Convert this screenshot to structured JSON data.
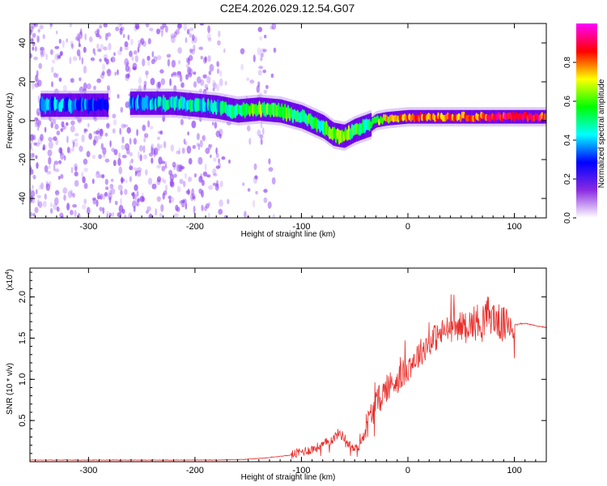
{
  "title": "C2E4.2026.029.12.54.G07",
  "colors": {
    "line": "#e8302c",
    "axis": "#000000",
    "track_dark": "#6a00e8",
    "noise": "#8c3cf2"
  },
  "chart_data": [
    {
      "type": "heatmap",
      "name": "spectrogram",
      "xlabel": "Height of straight line (km)",
      "ylabel": "Frequency (Hz)",
      "xlim": [
        -355,
        130
      ],
      "ylim": [
        -50,
        50
      ],
      "xticks": [
        -300,
        -200,
        -100,
        0,
        100
      ],
      "xtick_labels": [
        "-300",
        "-200",
        "-100",
        "0",
        "100"
      ],
      "yticks": [
        -40,
        -20,
        0,
        20,
        40
      ],
      "ytick_labels": [
        "-40",
        "-20",
        "0",
        "20",
        "40"
      ],
      "colorbar": {
        "label": "Normalized spectral amplitude",
        "range": [
          0,
          1
        ],
        "ticks": [
          0.0,
          0.2,
          0.4,
          0.6,
          0.8
        ],
        "tick_labels": [
          "0.0",
          "0.2",
          "0.4",
          "0.6",
          "0.8"
        ],
        "stops": [
          "#ffffff",
          "#8a2be2",
          "#0000ff",
          "#00ffff",
          "#00ff00",
          "#ffff00",
          "#ff0000",
          "#ff00ff"
        ]
      },
      "noise_region_km": [
        -355,
        -125
      ],
      "noise_gap_km": [
        -175,
        -150
      ],
      "track": {
        "x": [
          -345,
          -320,
          -300,
          -280,
          -260,
          -240,
          -220,
          -200,
          -180,
          -170,
          -160,
          -140,
          -120,
          -100,
          -80,
          -70,
          -60,
          -50,
          -40,
          -35,
          -30,
          -20,
          0,
          20,
          50,
          80,
          100,
          130
        ],
        "freq": [
          8,
          8,
          8,
          8,
          9,
          9,
          9,
          8,
          7,
          6,
          5,
          6,
          5,
          2,
          -3,
          -7,
          -8,
          -5,
          -3,
          -2,
          0,
          1,
          2,
          2,
          2,
          2,
          2,
          2
        ],
        "amplitude": [
          0.35,
          0.35,
          0.3,
          0.2,
          0.35,
          0.4,
          0.45,
          0.45,
          0.4,
          0.5,
          0.5,
          0.6,
          0.55,
          0.55,
          0.5,
          0.6,
          0.65,
          0.55,
          0.5,
          0.55,
          0.6,
          0.7,
          0.8,
          0.8,
          0.8,
          0.85,
          0.9,
          0.85
        ]
      }
    },
    {
      "type": "line",
      "name": "snr",
      "xlabel": "Height of straight line (km)",
      "ylabel": "SNR (10 * v/v)",
      "yscale_label": "(x10",
      "yscale_exp": "4",
      "yscale_suffix": ")",
      "xlim": [
        -355,
        130
      ],
      "ylim": [
        0,
        2.35
      ],
      "xticks": [
        -300,
        -200,
        -100,
        0,
        100
      ],
      "xtick_labels": [
        "-300",
        "-200",
        "-100",
        "0",
        "100"
      ],
      "yticks": [
        0.5,
        1.0,
        1.5,
        2.0
      ],
      "ytick_labels": [
        "0.5",
        "1.0",
        "1.5",
        "2.0"
      ],
      "series": [
        {
          "name": "SNR",
          "x": [
            -355,
            -330,
            -300,
            -270,
            -240,
            -210,
            -180,
            -150,
            -130,
            -110,
            -100,
            -90,
            -80,
            -70,
            -65,
            -60,
            -55,
            -50,
            -45,
            -40,
            -35,
            -30,
            -25,
            -20,
            -15,
            -10,
            -5,
            0,
            10,
            20,
            30,
            40,
            50,
            60,
            70,
            75,
            80,
            85,
            90,
            95,
            100,
            110,
            120,
            130
          ],
          "y": [
            0.02,
            0.02,
            0.02,
            0.02,
            0.02,
            0.02,
            0.02,
            0.03,
            0.05,
            0.08,
            0.12,
            0.15,
            0.2,
            0.28,
            0.35,
            0.3,
            0.2,
            0.15,
            0.2,
            0.4,
            0.55,
            0.7,
            0.8,
            0.9,
            0.95,
            1.0,
            1.05,
            1.15,
            1.3,
            1.45,
            1.55,
            1.62,
            1.65,
            1.68,
            1.72,
            1.8,
            1.75,
            1.7,
            1.65,
            1.68,
            1.66,
            1.68,
            1.65,
            1.63
          ]
        }
      ],
      "noisy_regions": [
        {
          "x_range": [
            -110,
            -40
          ],
          "amplitude": 0.12
        },
        {
          "x_range": [
            -40,
            60
          ],
          "amplitude": 0.35
        },
        {
          "x_range": [
            60,
            100
          ],
          "amplitude": 0.45
        }
      ]
    }
  ]
}
